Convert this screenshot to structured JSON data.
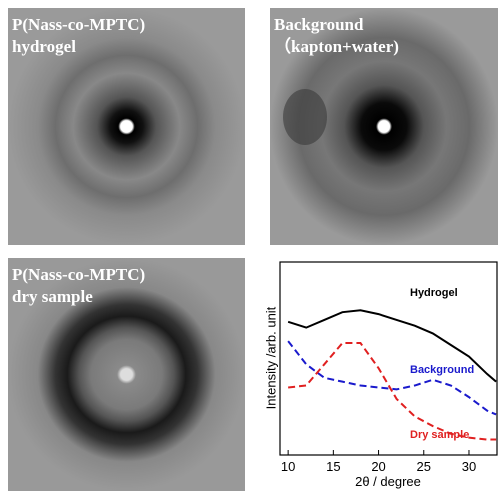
{
  "panels": [
    {
      "lines": [
        "P(Nass-co-MPTC)",
        "hydrogel"
      ]
    },
    {
      "lines": [
        "Background",
        "（kapton+water)"
      ]
    },
    {
      "lines": [
        "P(Nass-co-MPTC)",
        "dry sample"
      ]
    }
  ],
  "chart_data": {
    "type": "line",
    "xlabel": "2θ / degree",
    "ylabel": "Intensity /arb. unit",
    "x": [
      10,
      12,
      14,
      16,
      18,
      20,
      22,
      24,
      26,
      28,
      30,
      32,
      33
    ],
    "series": [
      {
        "name": "Hydrogel",
        "color": "#000000",
        "dashed": false,
        "values": [
          0.69,
          0.66,
          0.7,
          0.74,
          0.75,
          0.73,
          0.7,
          0.67,
          0.63,
          0.57,
          0.51,
          0.42,
          0.38
        ]
      },
      {
        "name": "Background",
        "color": "#1a1acc",
        "dashed": true,
        "values": [
          0.59,
          0.47,
          0.4,
          0.38,
          0.36,
          0.35,
          0.34,
          0.36,
          0.39,
          0.36,
          0.3,
          0.23,
          0.21
        ]
      },
      {
        "name": "Dry sample",
        "color": "#e02020",
        "dashed": true,
        "values": [
          0.35,
          0.36,
          0.47,
          0.58,
          0.58,
          0.45,
          0.29,
          0.2,
          0.15,
          0.11,
          0.09,
          0.08,
          0.08
        ]
      }
    ],
    "xlim": [
      9.1,
      33.1
    ],
    "xticks": [
      10,
      15,
      20,
      25,
      30
    ],
    "ylim": [
      0,
      1
    ]
  }
}
